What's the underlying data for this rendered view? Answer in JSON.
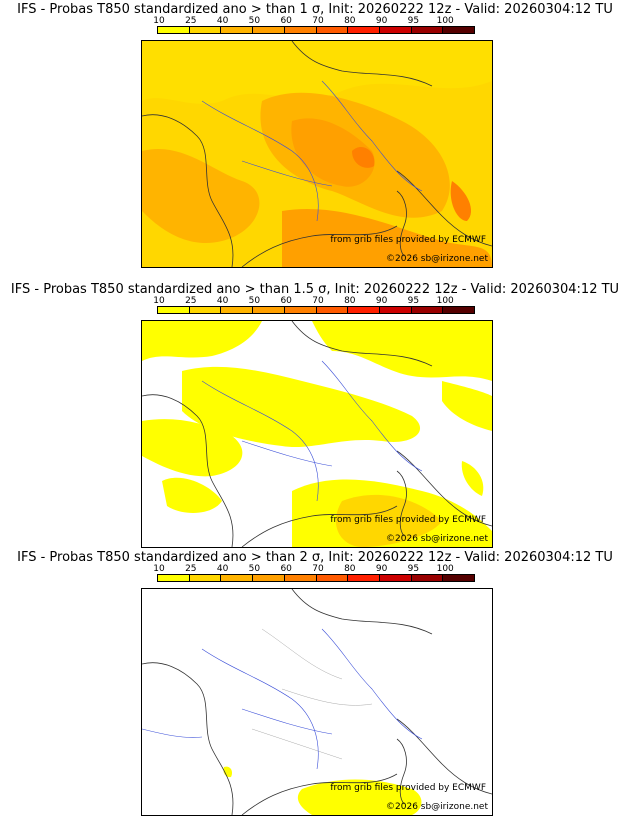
{
  "colorbar": {
    "ticks": [
      "10",
      "25",
      "40",
      "50",
      "60",
      "70",
      "80",
      "90",
      "95",
      "100"
    ],
    "colors": [
      "#ffff00",
      "#ffd700",
      "#ffb400",
      "#ffa000",
      "#ff8000",
      "#ff5a00",
      "#ff2000",
      "#cc0000",
      "#990000",
      "#550000"
    ]
  },
  "credits": {
    "source": "from grib files provided by ECMWF",
    "copyright": "©2026 sb@irizone.net"
  },
  "panels": [
    {
      "title": "IFS - Probas T850  standardized ano > than 1 σ, Init: 20260222 12z - Valid: 20260304:12 TU",
      "coverage": "high"
    },
    {
      "title": "IFS - Probas T850  standardized ano > than 1.5 σ, Init: 20260222 12z - Valid: 20260304:12 TU",
      "coverage": "medium"
    },
    {
      "title": "IFS - Probas T850  standardized ano > than 2 σ, Init: 20260222 12z - Valid: 20260304:12 TU",
      "coverage": "low"
    }
  ]
}
